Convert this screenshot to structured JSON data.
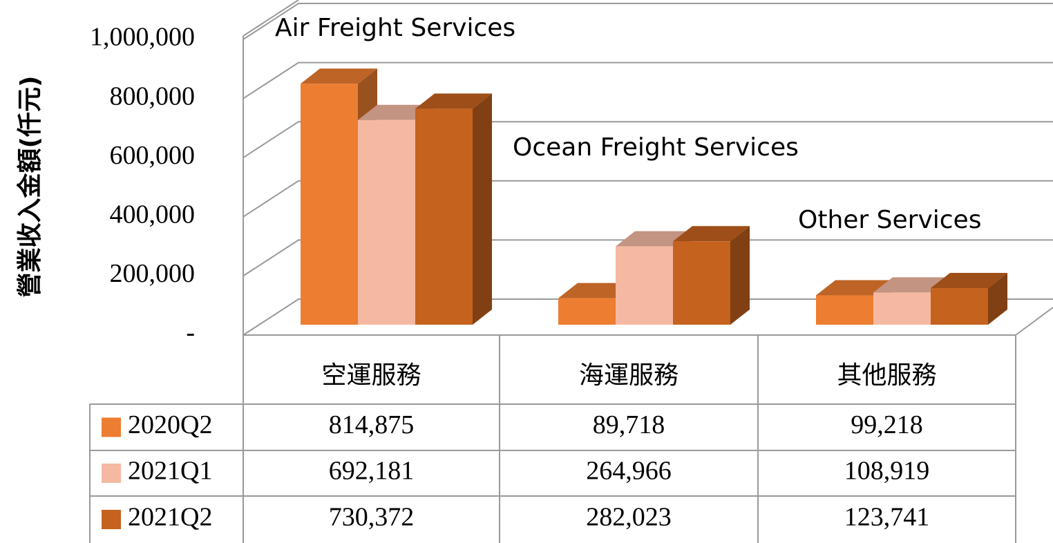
{
  "chart_data": {
    "type": "bar3d",
    "y_axis_label": "營業收入金額(仟元)",
    "annotations": [
      "Air Freight Services",
      "Ocean Freight Services",
      "Other Services"
    ],
    "categories": [
      "空運服務",
      "海運服務",
      "其他服務"
    ],
    "series": [
      {
        "name": "2020Q2",
        "color": "#ed7d31",
        "values": [
          814875,
          89718,
          99218
        ],
        "value_labels": [
          "814,875",
          "89,718",
          "99,218"
        ]
      },
      {
        "name": "2021Q1",
        "color": "#f5b9a3",
        "values": [
          692181,
          264966,
          108919
        ],
        "value_labels": [
          "692,181",
          "264,966",
          "108,919"
        ]
      },
      {
        "name": "2021Q2",
        "color": "#c5621e",
        "values": [
          730372,
          282023,
          123741
        ],
        "value_labels": [
          "730,372",
          "282,023",
          "123,741"
        ]
      }
    ],
    "ylim": [
      0,
      1000000
    ],
    "yticks": [
      {
        "value": 0,
        "label": "-"
      },
      {
        "value": 200000,
        "label": "200,000"
      },
      {
        "value": 400000,
        "label": "400,000"
      },
      {
        "value": 600000,
        "label": "600,000"
      },
      {
        "value": 800000,
        "label": "800,000"
      },
      {
        "value": 1000000,
        "label": "1,000,000"
      }
    ],
    "grid": true,
    "data_table": true
  }
}
